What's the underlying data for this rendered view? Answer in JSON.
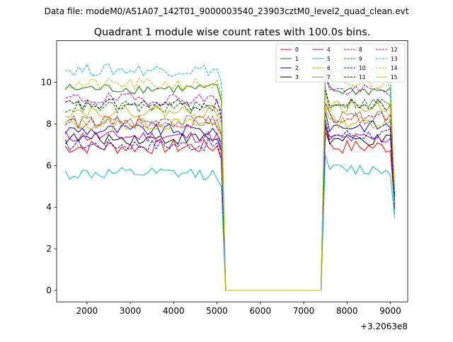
{
  "figure": {
    "suptitle": "Data file: modeM0/AS1A07_142T01_9000003540_23903cztM0_level2_quad_clean.evt"
  },
  "chart_data": {
    "type": "line",
    "title": "Quadrant 1 module wise count rates with 100.0s bins.",
    "xlabel": "",
    "ylabel": "",
    "x_offset_label": "+3.2063e8",
    "xlim": [
      1300,
      9400
    ],
    "ylim": [
      -0.55,
      12.0
    ],
    "xticks": [
      2000,
      3000,
      4000,
      5000,
      6000,
      7000,
      8000,
      9000
    ],
    "xtick_labels": [
      "2000",
      "3000",
      "4000",
      "5000",
      "6000",
      "7000",
      "8000",
      "9000"
    ],
    "yticks": [
      0,
      2,
      4,
      6,
      8,
      10
    ],
    "ytick_labels": [
      "0",
      "2",
      "4",
      "6",
      "8",
      "10"
    ],
    "grid": false,
    "legend_position": "top-right",
    "legend_columns": 4,
    "x_segments": [
      {
        "start": 1500,
        "end": 5100,
        "step": 100
      },
      {
        "start": 7500,
        "end": 9100,
        "step": 100
      }
    ],
    "gap_zero_range": [
      5200,
      7400
    ],
    "series": [
      {
        "name": "0",
        "color": "#ff0000",
        "dashed": false,
        "level_a": 6.9,
        "level_b": 6.9,
        "amp": 0.35,
        "dip_end": 4.0
      },
      {
        "name": "1",
        "color": "#008000",
        "dashed": false,
        "level_a": 9.7,
        "level_b": 9.6,
        "amp": 0.25,
        "dip_end": 4.4
      },
      {
        "name": "2",
        "color": "#0000ff",
        "dashed": false,
        "level_a": 7.7,
        "level_b": 7.9,
        "amp": 0.3,
        "dip_end": 4.0
      },
      {
        "name": "3",
        "color": "#000000",
        "dashed": false,
        "level_a": 7.3,
        "level_b": 7.2,
        "amp": 0.3,
        "dip_end": 3.9
      },
      {
        "name": "4",
        "color": "#bf00bf",
        "dashed": false,
        "level_a": 7.4,
        "level_b": 7.3,
        "amp": 0.3,
        "dip_end": 4.5
      },
      {
        "name": "5",
        "color": "#00bfbf",
        "dashed": false,
        "level_a": 5.6,
        "level_b": 5.8,
        "amp": 0.3,
        "dip_end": 3.5
      },
      {
        "name": "6",
        "color": "#bfbf00",
        "dashed": false,
        "level_a": 8.0,
        "level_b": 8.1,
        "amp": 0.3,
        "dip_end": 4.2
      },
      {
        "name": "7",
        "color": "#808080",
        "dashed": false,
        "level_a": 8.1,
        "level_b": 8.3,
        "amp": 0.3,
        "dip_end": 4.4
      },
      {
        "name": "8",
        "color": "#ff0000",
        "dashed": true,
        "level_a": 8.1,
        "level_b": 8.3,
        "amp": 0.3,
        "dip_end": 4.6
      },
      {
        "name": "9",
        "color": "#008000",
        "dashed": true,
        "level_a": 8.8,
        "level_b": 9.0,
        "amp": 0.3,
        "dip_end": 4.7
      },
      {
        "name": "10",
        "color": "#0000ff",
        "dashed": true,
        "level_a": 7.0,
        "level_b": 7.5,
        "amp": 0.3,
        "dip_end": 4.2
      },
      {
        "name": "11",
        "color": "#000000",
        "dashed": true,
        "level_a": 8.9,
        "level_b": 8.9,
        "amp": 0.3,
        "dip_end": 4.6
      },
      {
        "name": "12",
        "color": "#bf00bf",
        "dashed": true,
        "level_a": 9.2,
        "level_b": 9.6,
        "amp": 0.3,
        "dip_end": 4.7
      },
      {
        "name": "13",
        "color": "#00bfbf",
        "dashed": true,
        "level_a": 10.6,
        "level_b": 10.4,
        "amp": 0.3,
        "dip_end": 3.6
      },
      {
        "name": "14",
        "color": "#bfbf00",
        "dashed": true,
        "level_a": 9.9,
        "level_b": 9.9,
        "amp": 0.3,
        "dip_end": 4.8
      },
      {
        "name": "15",
        "color": "#bfbf00",
        "dashed": false,
        "level_a": 8.6,
        "level_b": 8.8,
        "amp": 0.3,
        "dip_end": 5.0
      }
    ]
  }
}
